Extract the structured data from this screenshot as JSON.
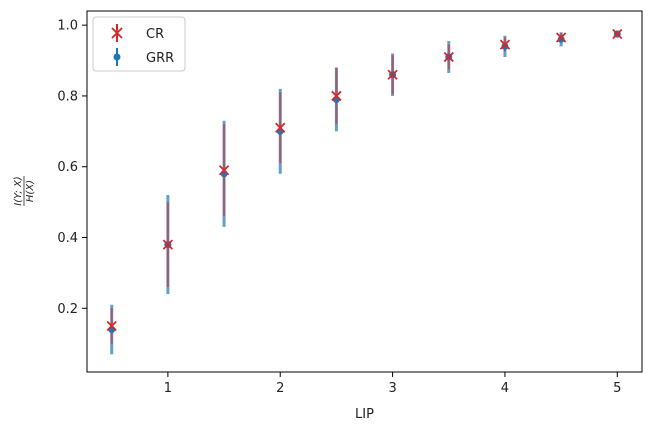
{
  "chart_data": {
    "type": "scatter",
    "title": "",
    "xlabel": "LIP",
    "ylabel": {
      "numerator": "I(Y; X)",
      "denominator": "H(X)"
    },
    "xlim": [
      0.28,
      5.22
    ],
    "ylim": [
      0.02,
      1.04
    ],
    "xticks": [
      1,
      2,
      3,
      4,
      5
    ],
    "xtick_labels": [
      "1",
      "2",
      "3",
      "4",
      "5"
    ],
    "yticks": [
      0.2,
      0.4,
      0.6,
      0.8,
      1.0
    ],
    "ytick_labels": [
      "0.2",
      "0.4",
      "0.6",
      "0.8",
      "1.0"
    ],
    "grid": false,
    "legend_position": "top-left",
    "x": [
      0.5,
      1.0,
      1.5,
      2.0,
      2.5,
      3.0,
      3.5,
      4.0,
      4.5,
      5.0
    ],
    "series": [
      {
        "name": "CR",
        "marker": "x",
        "color": "#d62728",
        "values": [
          0.15,
          0.38,
          0.59,
          0.71,
          0.8,
          0.86,
          0.91,
          0.945,
          0.965,
          0.975
        ],
        "err": [
          0.05,
          0.12,
          0.13,
          0.1,
          0.08,
          0.055,
          0.035,
          0.02,
          0.013,
          0.007
        ]
      },
      {
        "name": "GRR",
        "marker": "o",
        "color": "#1f77b4",
        "values": [
          0.14,
          0.38,
          0.58,
          0.7,
          0.79,
          0.86,
          0.91,
          0.94,
          0.96,
          0.975
        ],
        "err": [
          0.07,
          0.14,
          0.15,
          0.12,
          0.09,
          0.06,
          0.045,
          0.03,
          0.02,
          0.01
        ]
      }
    ]
  }
}
